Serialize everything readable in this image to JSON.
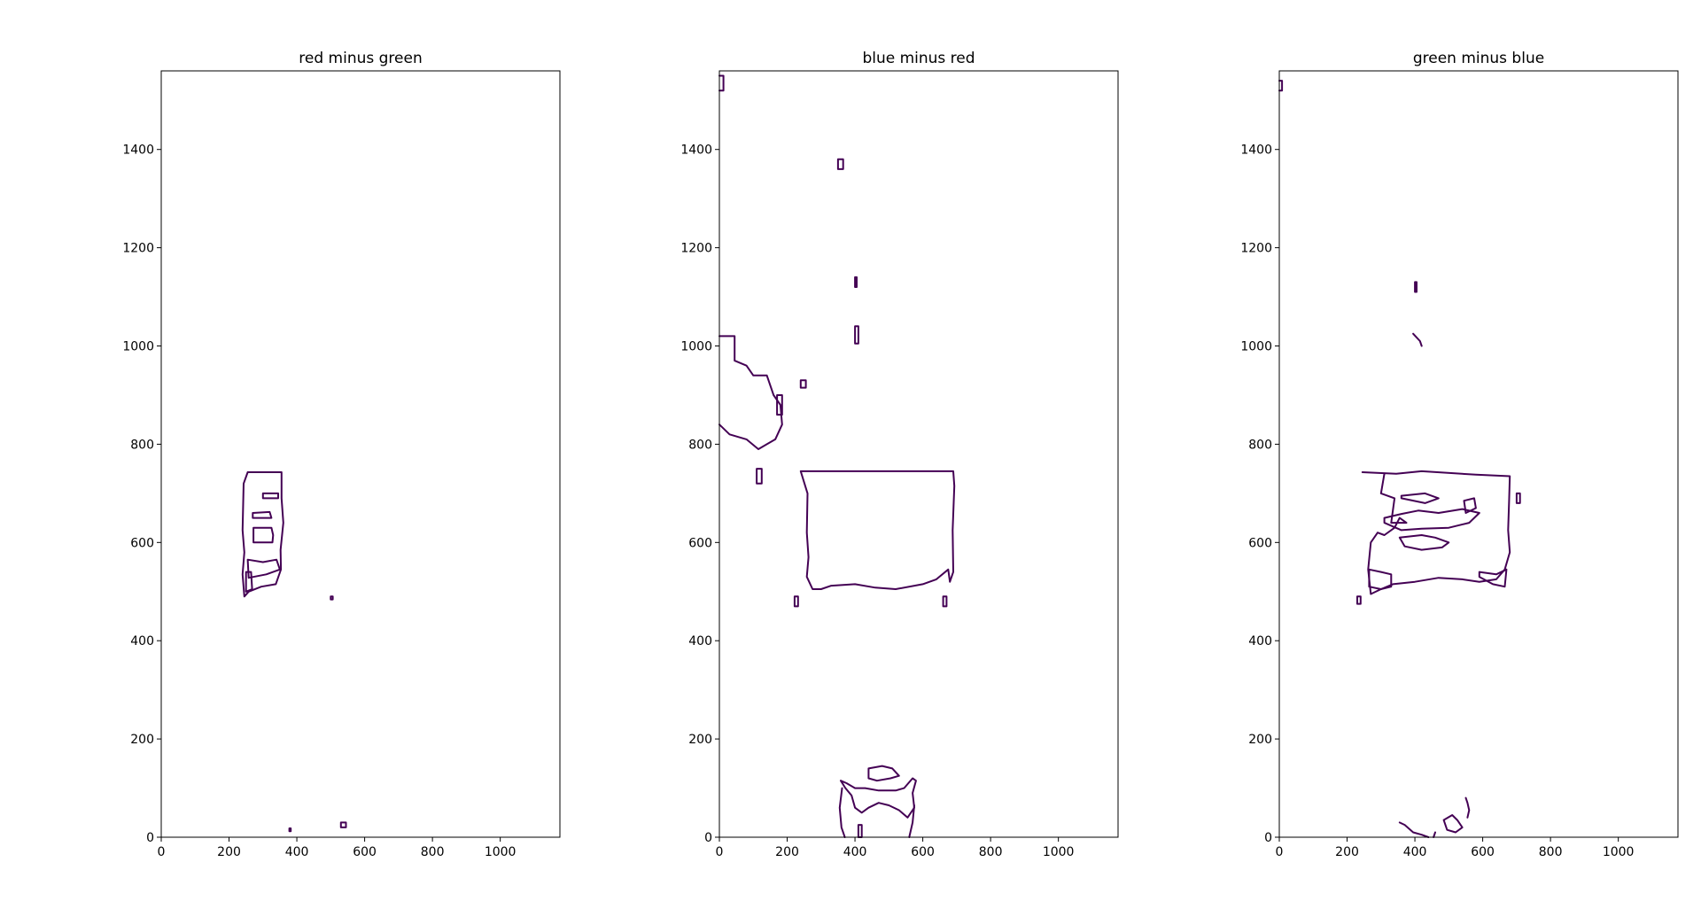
{
  "colors": {
    "contour": "#440154"
  },
  "chart_data": [
    {
      "type": "contour",
      "title": "red minus green",
      "xlim": [
        0,
        1176
      ],
      "ylim": [
        0,
        1560
      ],
      "xticks": [
        0,
        200,
        400,
        600,
        800,
        1000
      ],
      "yticks": [
        0,
        200,
        400,
        600,
        800,
        1000,
        1200,
        1400
      ],
      "contours": [
        [
          [
            255,
            743
          ],
          [
            355,
            743
          ],
          [
            355,
            690
          ],
          [
            360,
            640
          ],
          [
            352,
            585
          ],
          [
            353,
            545
          ],
          [
            338,
            515
          ],
          [
            295,
            510
          ],
          [
            258,
            500
          ],
          [
            245,
            490
          ],
          [
            240,
            535
          ],
          [
            245,
            580
          ],
          [
            240,
            625
          ],
          [
            243,
            720
          ],
          [
            255,
            743
          ]
        ],
        [
          [
            300,
            700
          ],
          [
            345,
            700
          ],
          [
            345,
            690
          ],
          [
            300,
            690
          ],
          [
            300,
            700
          ]
        ],
        [
          [
            270,
            660
          ],
          [
            320,
            662
          ],
          [
            325,
            650
          ],
          [
            270,
            650
          ],
          [
            270,
            660
          ]
        ],
        [
          [
            272,
            630
          ],
          [
            325,
            630
          ],
          [
            330,
            615
          ],
          [
            328,
            600
          ],
          [
            272,
            600
          ],
          [
            272,
            630
          ]
        ],
        [
          [
            255,
            565
          ],
          [
            300,
            560
          ],
          [
            340,
            565
          ],
          [
            350,
            545
          ],
          [
            310,
            535
          ],
          [
            258,
            528
          ],
          [
            255,
            565
          ]
        ],
        [
          [
            250,
            540
          ],
          [
            265,
            540
          ],
          [
            268,
            505
          ],
          [
            250,
            500
          ],
          [
            250,
            540
          ]
        ],
        [
          [
            378,
            18
          ],
          [
            382,
            18
          ],
          [
            382,
            12
          ],
          [
            378,
            12
          ],
          [
            378,
            18
          ]
        ],
        [
          [
            530,
            30
          ],
          [
            545,
            30
          ],
          [
            545,
            20
          ],
          [
            530,
            20
          ],
          [
            530,
            30
          ]
        ],
        [
          [
            500,
            490
          ],
          [
            506,
            490
          ],
          [
            506,
            484
          ],
          [
            500,
            484
          ],
          [
            500,
            490
          ]
        ]
      ]
    },
    {
      "type": "contour",
      "title": "blue minus red",
      "xlim": [
        0,
        1176
      ],
      "ylim": [
        0,
        1560
      ],
      "xticks": [
        0,
        200,
        400,
        600,
        800,
        1000
      ],
      "yticks": [
        0,
        200,
        400,
        600,
        800,
        1000,
        1200,
        1400
      ],
      "contours": [
        [
          [
            240,
            745
          ],
          [
            690,
            745
          ],
          [
            693,
            715
          ],
          [
            688,
            625
          ],
          [
            690,
            540
          ],
          [
            680,
            520
          ],
          [
            675,
            545
          ],
          [
            640,
            525
          ],
          [
            600,
            515
          ],
          [
            520,
            505
          ],
          [
            460,
            508
          ],
          [
            400,
            515
          ],
          [
            330,
            512
          ],
          [
            300,
            505
          ],
          [
            275,
            505
          ],
          [
            258,
            530
          ],
          [
            263,
            570
          ],
          [
            258,
            620
          ],
          [
            260,
            700
          ],
          [
            240,
            745
          ]
        ],
        [
          [
            0,
            1550
          ],
          [
            12,
            1550
          ],
          [
            12,
            1520
          ],
          [
            0,
            1520
          ]
        ],
        [
          [
            0,
            1020
          ],
          [
            45,
            1020
          ],
          [
            45,
            970
          ],
          [
            80,
            960
          ],
          [
            100,
            940
          ],
          [
            140,
            940
          ],
          [
            160,
            900
          ],
          [
            180,
            880
          ],
          [
            185,
            840
          ],
          [
            165,
            810
          ],
          [
            140,
            800
          ],
          [
            115,
            790
          ],
          [
            80,
            810
          ],
          [
            30,
            820
          ],
          [
            0,
            840
          ]
        ],
        [
          [
            240,
            930
          ],
          [
            255,
            930
          ],
          [
            255,
            915
          ],
          [
            240,
            915
          ],
          [
            240,
            930
          ]
        ],
        [
          [
            170,
            900
          ],
          [
            185,
            900
          ],
          [
            185,
            860
          ],
          [
            170,
            860
          ],
          [
            170,
            900
          ]
        ],
        [
          [
            110,
            750
          ],
          [
            125,
            750
          ],
          [
            125,
            720
          ],
          [
            110,
            720
          ],
          [
            110,
            750
          ]
        ],
        [
          [
            350,
            1380
          ],
          [
            365,
            1380
          ],
          [
            365,
            1360
          ],
          [
            350,
            1360
          ],
          [
            350,
            1380
          ]
        ],
        [
          [
            400,
            1140
          ],
          [
            405,
            1140
          ],
          [
            405,
            1120
          ],
          [
            400,
            1120
          ],
          [
            400,
            1140
          ]
        ],
        [
          [
            400,
            1040
          ],
          [
            410,
            1040
          ],
          [
            410,
            1005
          ],
          [
            400,
            1005
          ],
          [
            400,
            1040
          ]
        ],
        [
          [
            358,
            115
          ],
          [
            372,
            100
          ],
          [
            390,
            85
          ],
          [
            400,
            60
          ],
          [
            420,
            50
          ],
          [
            440,
            60
          ],
          [
            470,
            70
          ],
          [
            500,
            65
          ],
          [
            530,
            55
          ],
          [
            555,
            40
          ],
          [
            575,
            60
          ],
          [
            570,
            90
          ],
          [
            580,
            115
          ],
          [
            570,
            120
          ],
          [
            545,
            100
          ],
          [
            520,
            95
          ],
          [
            470,
            95
          ],
          [
            430,
            100
          ],
          [
            400,
            100
          ],
          [
            375,
            110
          ],
          [
            358,
            115
          ]
        ],
        [
          [
            440,
            140
          ],
          [
            480,
            145
          ],
          [
            510,
            140
          ],
          [
            530,
            125
          ],
          [
            505,
            120
          ],
          [
            465,
            115
          ],
          [
            440,
            120
          ],
          [
            440,
            140
          ]
        ],
        [
          [
            362,
            100
          ],
          [
            355,
            60
          ],
          [
            360,
            20
          ],
          [
            370,
            0
          ]
        ],
        [
          [
            560,
            0
          ],
          [
            570,
            30
          ],
          [
            575,
            65
          ]
        ],
        [
          [
            410,
            25
          ],
          [
            420,
            25
          ],
          [
            420,
            0
          ],
          [
            410,
            0
          ],
          [
            410,
            25
          ]
        ],
        [
          [
            222,
            490
          ],
          [
            232,
            490
          ],
          [
            232,
            470
          ],
          [
            222,
            470
          ],
          [
            222,
            490
          ]
        ],
        [
          [
            660,
            490
          ],
          [
            670,
            490
          ],
          [
            670,
            470
          ],
          [
            660,
            470
          ],
          [
            660,
            490
          ]
        ]
      ]
    },
    {
      "type": "contour",
      "title": "green minus blue",
      "xlim": [
        0,
        1176
      ],
      "ylim": [
        0,
        1560
      ],
      "xticks": [
        0,
        200,
        400,
        600,
        800,
        1000
      ],
      "yticks": [
        0,
        200,
        400,
        600,
        800,
        1000,
        1200,
        1400
      ],
      "contours": [
        [
          [
            245,
            743
          ],
          [
            345,
            740
          ],
          [
            420,
            745
          ],
          [
            580,
            738
          ],
          [
            680,
            735
          ],
          [
            678,
            685
          ],
          [
            675,
            625
          ],
          [
            680,
            580
          ],
          [
            665,
            545
          ],
          [
            640,
            525
          ],
          [
            590,
            520
          ],
          [
            540,
            525
          ],
          [
            470,
            528
          ],
          [
            400,
            520
          ],
          [
            335,
            515
          ],
          [
            300,
            505
          ],
          [
            270,
            495
          ],
          [
            262,
            545
          ],
          [
            270,
            600
          ],
          [
            290,
            620
          ],
          [
            310,
            615
          ],
          [
            340,
            630
          ],
          [
            355,
            650
          ],
          [
            375,
            640
          ],
          [
            330,
            640
          ],
          [
            340,
            690
          ],
          [
            300,
            700
          ],
          [
            310,
            740
          ]
        ],
        [
          [
            0,
            1540
          ],
          [
            8,
            1540
          ],
          [
            8,
            1520
          ],
          [
            0,
            1520
          ]
        ],
        [
          [
            400,
            1130
          ],
          [
            405,
            1130
          ],
          [
            405,
            1110
          ],
          [
            400,
            1110
          ],
          [
            400,
            1130
          ]
        ],
        [
          [
            395,
            1025
          ],
          [
            415,
            1010
          ],
          [
            420,
            1000
          ]
        ],
        [
          [
            360,
            695
          ],
          [
            430,
            700
          ],
          [
            470,
            690
          ],
          [
            430,
            680
          ],
          [
            360,
            690
          ],
          [
            360,
            695
          ]
        ],
        [
          [
            310,
            650
          ],
          [
            360,
            658
          ],
          [
            410,
            665
          ],
          [
            470,
            660
          ],
          [
            540,
            668
          ],
          [
            590,
            660
          ],
          [
            560,
            640
          ],
          [
            500,
            630
          ],
          [
            420,
            628
          ],
          [
            360,
            625
          ],
          [
            310,
            640
          ],
          [
            310,
            650
          ]
        ],
        [
          [
            355,
            610
          ],
          [
            420,
            615
          ],
          [
            460,
            610
          ],
          [
            500,
            600
          ],
          [
            480,
            590
          ],
          [
            420,
            585
          ],
          [
            370,
            592
          ],
          [
            355,
            610
          ]
        ],
        [
          [
            545,
            685
          ],
          [
            575,
            690
          ],
          [
            580,
            670
          ],
          [
            550,
            660
          ],
          [
            545,
            685
          ]
        ],
        [
          [
            700,
            700
          ],
          [
            710,
            700
          ],
          [
            710,
            680
          ],
          [
            700,
            680
          ],
          [
            700,
            700
          ]
        ],
        [
          [
            265,
            545
          ],
          [
            300,
            540
          ],
          [
            330,
            535
          ],
          [
            330,
            510
          ],
          [
            300,
            505
          ],
          [
            265,
            510
          ],
          [
            265,
            545
          ]
        ],
        [
          [
            590,
            540
          ],
          [
            640,
            535
          ],
          [
            670,
            545
          ],
          [
            665,
            510
          ],
          [
            630,
            515
          ],
          [
            590,
            530
          ],
          [
            590,
            540
          ]
        ],
        [
          [
            355,
            30
          ],
          [
            370,
            25
          ],
          [
            395,
            10
          ],
          [
            420,
            5
          ],
          [
            440,
            0
          ]
        ],
        [
          [
            485,
            35
          ],
          [
            510,
            45
          ],
          [
            525,
            35
          ],
          [
            540,
            20
          ],
          [
            520,
            10
          ],
          [
            495,
            15
          ],
          [
            485,
            35
          ]
        ],
        [
          [
            550,
            80
          ],
          [
            555,
            70
          ],
          [
            560,
            55
          ],
          [
            555,
            40
          ]
        ],
        [
          [
            230,
            490
          ],
          [
            240,
            490
          ],
          [
            240,
            475
          ],
          [
            230,
            475
          ],
          [
            230,
            490
          ]
        ],
        [
          [
            455,
            0
          ],
          [
            460,
            10
          ]
        ]
      ]
    }
  ]
}
